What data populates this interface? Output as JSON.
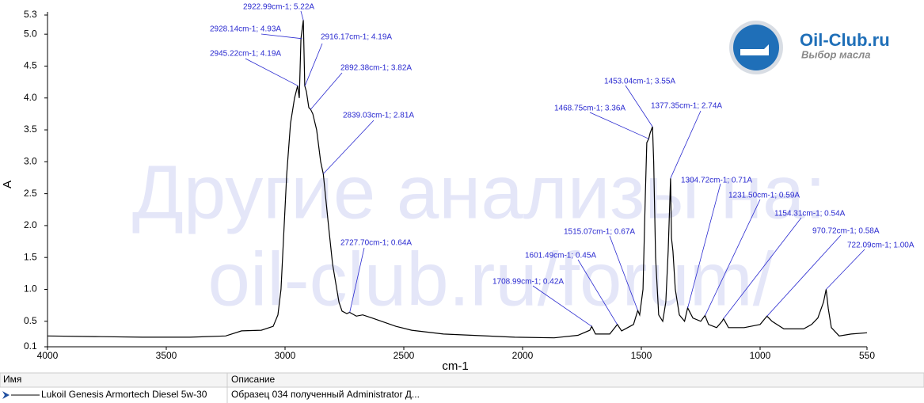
{
  "chart_data": {
    "type": "line",
    "x_label": "cm-1",
    "y_label": "A",
    "xlim": [
      4000,
      550
    ],
    "ylim": [
      0.1,
      5.3
    ],
    "xticks": [
      4000,
      3500,
      3000,
      2500,
      2000,
      1500,
      1000,
      550
    ],
    "yticks": [
      0.1,
      0.5,
      {
        "value": 1,
        "label": "1.0"
      },
      1.5,
      {
        "value": 2,
        "label": "2.0"
      },
      2.5,
      {
        "value": 3,
        "label": "3.0"
      },
      3.5,
      {
        "value": 4,
        "label": "4.0"
      },
      4.5,
      {
        "value": 5,
        "label": "5.0"
      },
      5.3
    ],
    "series": [
      {
        "name": "Lukoil Genesis Armortech Diesel 5w-30",
        "color": "#000000",
        "x": [
          4000,
          3800,
          3600,
          3400,
          3250,
          3183,
          3100,
          3050,
          3030,
          3017,
          2993,
          2977,
          2960,
          2947,
          2940,
          2933,
          2923,
          2917,
          2910,
          2900,
          2892,
          2883,
          2867,
          2850,
          2839,
          2817,
          2800,
          2773,
          2760,
          2740,
          2728,
          2700,
          2673,
          2633,
          2533,
          2467,
          2333,
          2033,
          1867,
          1767,
          1717,
          1709,
          1693,
          1633,
          1601,
          1583,
          1533,
          1515,
          1507,
          1493,
          1483,
          1477,
          1469,
          1463,
          1453,
          1448,
          1440,
          1427,
          1410,
          1397,
          1387,
          1377,
          1373,
          1367,
          1357,
          1340,
          1318,
          1305,
          1283,
          1250,
          1232,
          1217,
          1183,
          1160,
          1154,
          1133,
          1067,
          1000,
          971,
          950,
          900,
          817,
          783,
          757,
          733,
          722,
          713,
          700,
          667,
          617,
          550
        ],
        "values": [
          0.27,
          0.26,
          0.25,
          0.25,
          0.27,
          0.35,
          0.36,
          0.42,
          0.6,
          1.0,
          2.8,
          3.6,
          4.0,
          4.19,
          4.0,
          4.93,
          5.22,
          4.19,
          4.1,
          3.85,
          3.82,
          3.75,
          3.5,
          3.0,
          2.81,
          2.0,
          1.4,
          0.8,
          0.66,
          0.62,
          0.64,
          0.58,
          0.6,
          0.55,
          0.42,
          0.36,
          0.3,
          0.25,
          0.24,
          0.28,
          0.36,
          0.42,
          0.3,
          0.3,
          0.45,
          0.35,
          0.45,
          0.67,
          0.6,
          1.0,
          2.5,
          3.3,
          3.36,
          3.45,
          3.55,
          3.0,
          1.5,
          0.6,
          0.5,
          0.8,
          1.6,
          2.74,
          1.8,
          1.6,
          1.0,
          0.6,
          0.5,
          0.71,
          0.55,
          0.5,
          0.59,
          0.45,
          0.4,
          0.5,
          0.54,
          0.4,
          0.4,
          0.45,
          0.58,
          0.5,
          0.38,
          0.38,
          0.45,
          0.55,
          0.8,
          1.0,
          0.7,
          0.4,
          0.27,
          0.3,
          0.32
        ]
      }
    ],
    "annotations": [
      {
        "label": "2922.99cm-1; 5.22A",
        "x": 2922.99,
        "y": 5.22
      },
      {
        "label": "2928.14cm-1; 4.93A",
        "x": 2928.14,
        "y": 4.93
      },
      {
        "label": "2945.22cm-1; 4.19A",
        "x": 2945.22,
        "y": 4.19
      },
      {
        "label": "2916.17cm-1; 4.19A",
        "x": 2916.17,
        "y": 4.19
      },
      {
        "label": "2892.38cm-1; 3.82A",
        "x": 2892.38,
        "y": 3.82
      },
      {
        "label": "2839.03cm-1; 2.81A",
        "x": 2839.03,
        "y": 2.81
      },
      {
        "label": "2727.70cm-1; 0.64A",
        "x": 2727.7,
        "y": 0.64
      },
      {
        "label": "1453.04cm-1; 3.55A",
        "x": 1453.04,
        "y": 3.55
      },
      {
        "label": "1468.75cm-1; 3.36A",
        "x": 1468.75,
        "y": 3.36
      },
      {
        "label": "1377.35cm-1; 2.74A",
        "x": 1377.35,
        "y": 2.74
      },
      {
        "label": "1304.72cm-1; 0.71A",
        "x": 1304.72,
        "y": 0.71
      },
      {
        "label": "1231.50cm-1; 0.59A",
        "x": 1231.5,
        "y": 0.59
      },
      {
        "label": "1154.31cm-1; 0.54A",
        "x": 1154.31,
        "y": 0.54
      },
      {
        "label": "970.72cm-1; 0.58A",
        "x": 970.72,
        "y": 0.58
      },
      {
        "label": "722.09cm-1; 1.00A",
        "x": 722.09,
        "y": 1.0
      },
      {
        "label": "1515.07cm-1; 0.67A",
        "x": 1515.07,
        "y": 0.67
      },
      {
        "label": "1601.49cm-1; 0.45A",
        "x": 1601.49,
        "y": 0.45
      },
      {
        "label": "1708.99cm-1; 0.42A",
        "x": 1708.99,
        "y": 0.42
      }
    ]
  },
  "watermark": {
    "line1": "Другие анализы на:",
    "line2": "oil-club.ru/forum/"
  },
  "logo": {
    "title": "Oil-Club.ru",
    "subtitle": "Выбор масла"
  },
  "table": {
    "headers": [
      "Имя",
      "Описание"
    ],
    "rows": [
      {
        "description": "Образец 034 полученный Administrator Д..."
      }
    ]
  }
}
